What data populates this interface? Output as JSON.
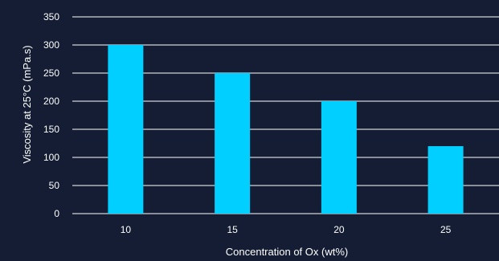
{
  "chart_data": {
    "type": "bar",
    "categories": [
      "10",
      "15",
      "20",
      "25"
    ],
    "values": [
      300,
      250,
      200,
      120
    ],
    "xlabel": "Concentration of Ox (wt%)",
    "ylabel": "Viscosity at 25°C (mPa.s)",
    "ylim": [
      0,
      350
    ],
    "yticks": [
      0,
      50,
      100,
      150,
      200,
      250,
      300,
      350
    ],
    "grid": true,
    "legend": "none"
  },
  "colors": {
    "background": "#141d33",
    "bar": "#00cfff",
    "grid": "#ffffff",
    "text": "#ffffff"
  }
}
